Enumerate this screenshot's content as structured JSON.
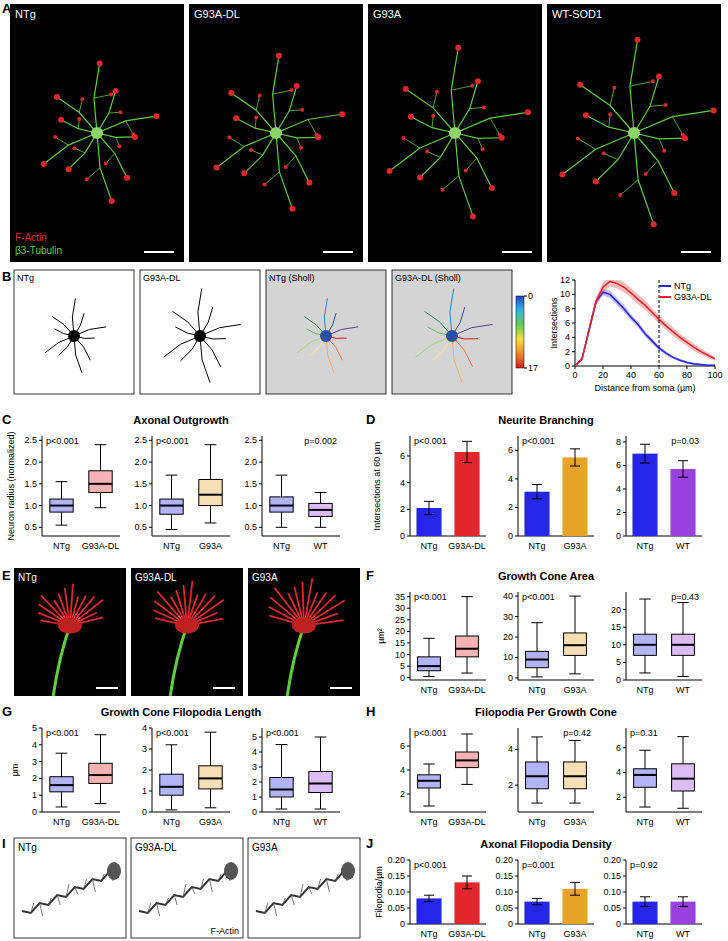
{
  "chart_data": [
    {
      "type": "line",
      "x_label": "Distance from soma (µm)",
      "y_label": "Intersections",
      "x": [
        0,
        5,
        10,
        15,
        20,
        25,
        30,
        35,
        40,
        45,
        50,
        55,
        60,
        65,
        70,
        75,
        80,
        85,
        90,
        95,
        100
      ],
      "series": [
        {
          "name": "NTg",
          "color": "#2626e8",
          "values": [
            0,
            1,
            5,
            9,
            10.3,
            10,
            9,
            8,
            6.8,
            5.8,
            4.5,
            3.5,
            2.5,
            1.8,
            1.2,
            0.8,
            0.5,
            0.3,
            0.2,
            0.1,
            0.1
          ],
          "error": [
            0,
            0.2,
            0.4,
            0.5,
            0.5,
            0.5,
            0.5,
            0.5,
            0.4,
            0.4,
            0.4,
            0.4,
            0.3,
            0.3,
            0.2,
            0.2,
            0.2,
            0.1,
            0.1,
            0.1,
            0.1
          ]
        },
        {
          "name": "G93A-DL",
          "color": "#e3262b",
          "values": [
            0,
            1,
            5,
            9,
            11,
            11.8,
            11.5,
            11,
            10.2,
            9.3,
            8.5,
            7.5,
            6.5,
            5.6,
            4.8,
            4,
            3.3,
            2.6,
            2,
            1.5,
            1
          ],
          "error": [
            0,
            0.3,
            0.5,
            0.6,
            0.7,
            0.7,
            0.7,
            0.7,
            0.7,
            0.7,
            0.7,
            0.6,
            0.6,
            0.6,
            0.6,
            0.5,
            0.5,
            0.5,
            0.4,
            0.4,
            0.3
          ]
        }
      ],
      "xlim": [
        0,
        100
      ],
      "xticks": [
        0,
        20,
        40,
        60,
        80,
        100
      ],
      "ylim": [
        0,
        12
      ],
      "yticks": [
        0,
        2,
        4,
        6,
        8,
        10,
        12
      ],
      "reference_x": 60,
      "legend": "upper right"
    },
    {
      "type": "box",
      "title": "Axonal Outgrowth",
      "y_label": "Neuron radius (normalized)",
      "subplots": [
        {
          "categories": [
            "NTg",
            "G93A-DL"
          ],
          "colors": [
            "#2626e8",
            "#e3262b"
          ],
          "annotation": "p<0.001",
          "ylim": [
            0.3,
            2.6
          ],
          "yticks": [
            0.5,
            {
              "value": 1,
              "label": "1.0"
            },
            1.5,
            {
              "value": 2,
              "label": "2.0"
            },
            2.5
          ],
          "whisker_low": [
            0.55,
            0.95
          ],
          "q1": [
            0.85,
            1.3
          ],
          "median": [
            1.0,
            1.5
          ],
          "q3": [
            1.15,
            1.8
          ],
          "whisker_high": [
            1.55,
            2.4
          ]
        },
        {
          "categories": [
            "NTg",
            "G93A"
          ],
          "colors": [
            "#2626e8",
            "#e8a32a"
          ],
          "annotation": "p<0.001",
          "ylim": [
            0.3,
            2.6
          ],
          "yticks": [
            0.5,
            {
              "value": 1,
              "label": "1.0"
            },
            1.5,
            {
              "value": 2,
              "label": "2.0"
            },
            2.5
          ],
          "whisker_low": [
            0.45,
            0.6
          ],
          "q1": [
            0.8,
            1.0
          ],
          "median": [
            1.0,
            1.25
          ],
          "q3": [
            1.15,
            1.6
          ],
          "whisker_high": [
            1.7,
            2.4
          ]
        },
        {
          "categories": [
            "NTg",
            "WT"
          ],
          "colors": [
            "#2626e8",
            "#9940e0"
          ],
          "annotation": "p=0.002",
          "ylim": [
            0.3,
            2.6
          ],
          "yticks": [
            0.5,
            {
              "value": 1,
              "label": "1.0"
            },
            1.5,
            {
              "value": 2,
              "label": "2.0"
            },
            2.5
          ],
          "whisker_low": [
            0.5,
            0.5
          ],
          "q1": [
            0.85,
            0.75
          ],
          "median": [
            1.0,
            0.9
          ],
          "q3": [
            1.2,
            1.05
          ],
          "whisker_high": [
            1.7,
            1.3
          ]
        }
      ]
    },
    {
      "type": "bar",
      "title": "Neurite Branching",
      "y_label": "Intersections at 60 µm",
      "subplots": [
        {
          "categories": [
            "NTg",
            "G93A-DL"
          ],
          "colors": [
            "#2626e8",
            "#e3262b"
          ],
          "annotation": "p<0.001",
          "ylim": [
            0,
            7.5
          ],
          "yticks": [
            0,
            2,
            4,
            6
          ],
          "values": [
            2.1,
            6.3
          ],
          "error": [
            0.5,
            0.8
          ]
        },
        {
          "categories": [
            "NTg",
            "G93A"
          ],
          "colors": [
            "#2626e8",
            "#e8a32a"
          ],
          "annotation": "p<0.001",
          "ylim": [
            0,
            7
          ],
          "yticks": [
            0,
            2,
            4,
            6
          ],
          "values": [
            3.1,
            5.5
          ],
          "error": [
            0.5,
            0.6
          ]
        },
        {
          "categories": [
            "NTg",
            "WT"
          ],
          "colors": [
            "#2626e8",
            "#9940e0"
          ],
          "annotation": "p=0.03",
          "ylim": [
            0,
            8.5
          ],
          "yticks": [
            0,
            2,
            4,
            6,
            8
          ],
          "values": [
            7.0,
            5.7
          ],
          "error": [
            0.8,
            0.7
          ]
        }
      ]
    },
    {
      "type": "box",
      "title": "Growth Cone Area",
      "y_label": "µm²",
      "subplots": [
        {
          "categories": [
            "NTg",
            "G93A-DL"
          ],
          "colors": [
            "#2626e8",
            "#e3262b"
          ],
          "annotation": "p<0.001",
          "ylim": [
            -1,
            37
          ],
          "yticks": [
            0,
            5,
            10,
            15,
            20,
            25,
            30,
            35
          ],
          "whisker_low": [
            0.5,
            2
          ],
          "q1": [
            3,
            9
          ],
          "median": [
            5,
            12.5
          ],
          "q3": [
            9,
            18
          ],
          "whisker_high": [
            17,
            35
          ]
        },
        {
          "categories": [
            "NTg",
            "G93A"
          ],
          "colors": [
            "#2626e8",
            "#e8a32a"
          ],
          "annotation": "p<0.001",
          "ylim": [
            -1,
            42
          ],
          "yticks": [
            0,
            10,
            20,
            30,
            40
          ],
          "whisker_low": [
            0.5,
            2
          ],
          "q1": [
            5,
            11
          ],
          "median": [
            9,
            16
          ],
          "q3": [
            13,
            22
          ],
          "whisker_high": [
            27,
            40
          ]
        },
        {
          "categories": [
            "NTg",
            "WT"
          ],
          "colors": [
            "#2626e8",
            "#9940e0"
          ],
          "annotation": "p=0.43",
          "ylim": [
            0,
            25
          ],
          "yticks": [
            0,
            5,
            10,
            15,
            20
          ],
          "whisker_low": [
            2,
            1
          ],
          "q1": [
            7,
            7
          ],
          "median": [
            10,
            10
          ],
          "q3": [
            13,
            13
          ],
          "whisker_high": [
            23,
            22
          ]
        }
      ]
    },
    {
      "type": "box",
      "title": "Growth Cone Filopodia Length",
      "y_label": "µm",
      "subplots": [
        {
          "categories": [
            "NTg",
            "G93A-DL"
          ],
          "colors": [
            "#2626e8",
            "#e3262b"
          ],
          "annotation": "p<0.001",
          "ylim": [
            0,
            5
          ],
          "yticks": [
            0,
            1,
            2,
            3,
            4,
            5
          ],
          "whisker_low": [
            0.3,
            0.5
          ],
          "q1": [
            1.2,
            1.7
          ],
          "median": [
            1.6,
            2.2
          ],
          "q3": [
            2.1,
            2.9
          ],
          "whisker_high": [
            3.5,
            4.6
          ]
        },
        {
          "categories": [
            "NTg",
            "G93A"
          ],
          "colors": [
            "#2626e8",
            "#e8a32a"
          ],
          "annotation": "p<0.001",
          "ylim": [
            0,
            4
          ],
          "yticks": [
            0,
            1,
            2,
            3,
            4
          ],
          "whisker_low": [
            0.1,
            0.2
          ],
          "q1": [
            0.8,
            1.1
          ],
          "median": [
            1.2,
            1.6
          ],
          "q3": [
            1.8,
            2.2
          ],
          "whisker_high": [
            3.2,
            3.8
          ]
        },
        {
          "categories": [
            "NTg",
            "WT"
          ],
          "colors": [
            "#2626e8",
            "#9940e0"
          ],
          "annotation": "p<0.001",
          "ylim": [
            0,
            5.6
          ],
          "yticks": [
            0,
            1,
            2,
            3,
            4,
            5
          ],
          "whisker_low": [
            0.2,
            0.2
          ],
          "q1": [
            1.0,
            1.3
          ],
          "median": [
            1.5,
            1.9
          ],
          "q3": [
            2.3,
            2.7
          ],
          "whisker_high": [
            4.5,
            5.0
          ]
        }
      ]
    },
    {
      "type": "box",
      "title": "Filopodia Per Growth Cone",
      "subplots": [
        {
          "categories": [
            "NTg",
            "G93A-DL"
          ],
          "colors": [
            "#2626e8",
            "#e3262b"
          ],
          "annotation": "p<0.001",
          "ylim": [
            0.5,
            7.5
          ],
          "yticks": [
            2,
            4,
            6
          ],
          "whisker_low": [
            1,
            2.8
          ],
          "q1": [
            2.5,
            4.2
          ],
          "median": [
            3.1,
            4.8
          ],
          "q3": [
            3.6,
            5.5
          ],
          "whisker_high": [
            4.5,
            7
          ]
        },
        {
          "categories": [
            "NTg",
            "G93A"
          ],
          "colors": [
            "#2626e8",
            "#e8a32a"
          ],
          "annotation": "p=0.42",
          "ylim": [
            0.5,
            5.2
          ],
          "yticks": [
            2,
            4
          ],
          "whisker_low": [
            1,
            1
          ],
          "q1": [
            1.8,
            1.8
          ],
          "median": [
            2.5,
            2.5
          ],
          "q3": [
            3.3,
            3.3
          ],
          "whisker_high": [
            4.7,
            4.5
          ]
        },
        {
          "categories": [
            "NTg",
            "WT"
          ],
          "colors": [
            "#2626e8",
            "#9940e0"
          ],
          "annotation": "p=0.31",
          "ylim": [
            0.8,
            7.6
          ],
          "yticks": [
            2,
            4,
            6
          ],
          "whisker_low": [
            1.2,
            1.1
          ],
          "q1": [
            2.8,
            2.5
          ],
          "median": [
            3.8,
            3.5
          ],
          "q3": [
            4.3,
            4.7
          ],
          "whisker_high": [
            5.8,
            6.9
          ]
        }
      ]
    },
    {
      "type": "bar",
      "title": "Axonal Filopodia Density",
      "y_label": "Filopodia/µm",
      "subplots": [
        {
          "categories": [
            "NTg",
            "G93A-DL"
          ],
          "colors": [
            "#2626e8",
            "#e3262b"
          ],
          "annotation": "p<0.001",
          "ylim": [
            0,
            0.2
          ],
          "yticks": [
            0,
            0.05,
            {
              "value": 0.1,
              "label": "0.10"
            },
            0.15,
            {
              "value": 0.2,
              "label": "0.20"
            }
          ],
          "values": [
            0.08,
            0.13
          ],
          "error": [
            0.01,
            0.02
          ]
        },
        {
          "categories": [
            "NTg",
            "G93A"
          ],
          "colors": [
            "#2626e8",
            "#e8a32a"
          ],
          "annotation": "p=0.001",
          "ylim": [
            0,
            0.2
          ],
          "yticks": [
            0,
            0.05,
            {
              "value": 0.1,
              "label": "0.10"
            },
            0.15,
            {
              "value": 0.2,
              "label": "0.20"
            }
          ],
          "values": [
            0.07,
            0.11
          ],
          "error": [
            0.01,
            0.02
          ]
        },
        {
          "categories": [
            "NTg",
            "WT"
          ],
          "colors": [
            "#2626e8",
            "#9940e0"
          ],
          "annotation": "p=0.92",
          "ylim": [
            0,
            0.2
          ],
          "yticks": [
            0,
            0.05,
            {
              "value": 0.1,
              "label": "0.10"
            },
            0.15,
            {
              "value": 0.2,
              "label": "0.20"
            }
          ],
          "values": [
            0.07,
            0.07
          ],
          "error": [
            0.015,
            0.015
          ]
        }
      ]
    }
  ],
  "figure": {
    "letters": [
      "A",
      "B",
      "C",
      "D",
      "E",
      "F",
      "G",
      "H",
      "I",
      "J"
    ],
    "panel_a": {
      "labels": [
        "NTg",
        "G93A-DL",
        "G93A",
        "WT-SOD1"
      ],
      "stains": [
        "F-Actin",
        "β3-Tubulin"
      ]
    },
    "panel_b": {
      "labels": [
        "NTg",
        "G93A-DL",
        "NTg (Sholl)",
        "G93A-DL (Sholl)"
      ],
      "colorbar_range": [
        0,
        17
      ],
      "colorbar_ticks": [
        0,
        17
      ]
    },
    "panel_e": {
      "labels": [
        "NTg",
        "G93A-DL",
        "G93A"
      ]
    },
    "panel_i": {
      "labels": [
        "NTg",
        "G93A-DL",
        "G93A"
      ],
      "stain": "F-Actin"
    }
  }
}
